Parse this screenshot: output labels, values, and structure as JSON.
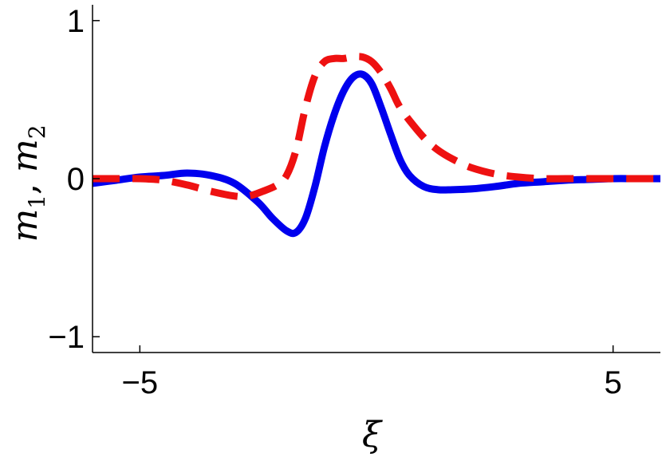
{
  "chart_data": {
    "type": "line",
    "xlabel": "ξ",
    "ylabel_parts": {
      "m": "m",
      "sub1": "1",
      "sep": ", ",
      "sub2": "2"
    },
    "xlim": [
      -6,
      6
    ],
    "ylim": [
      -1.1,
      1.1
    ],
    "x_ticks": [
      {
        "value": -5,
        "label": "−5"
      },
      {
        "value": 5,
        "label": "5"
      }
    ],
    "y_ticks": [
      {
        "value": 1,
        "label": "1"
      },
      {
        "value": 0,
        "label": "0"
      },
      {
        "value": -1,
        "label": "−1"
      }
    ],
    "grid": false,
    "series": [
      {
        "style": "solid",
        "color": "#0000ee",
        "x": [
          -6,
          -5.5,
          -5,
          -4.5,
          -4,
          -3.5,
          -3,
          -2.5,
          -2.2,
          -1.9,
          -1.7,
          -1.5,
          -1.3,
          -1.1,
          -0.9,
          -0.7,
          -0.5,
          -0.3,
          -0.1,
          0.1,
          0.3,
          0.5,
          0.7,
          1.0,
          1.3,
          1.6,
          2.0,
          2.5,
          3.0,
          3.5,
          4.0,
          4.5,
          5.0,
          5.5,
          6.0
        ],
        "y": [
          -0.03,
          -0.01,
          0.01,
          0.02,
          0.035,
          0.02,
          -0.03,
          -0.15,
          -0.25,
          -0.33,
          -0.34,
          -0.25,
          -0.05,
          0.2,
          0.4,
          0.55,
          0.64,
          0.66,
          0.6,
          0.45,
          0.28,
          0.12,
          0.02,
          -0.05,
          -0.07,
          -0.07,
          -0.065,
          -0.05,
          -0.03,
          -0.02,
          -0.01,
          -0.005,
          0.0,
          0.0,
          0.0
        ]
      },
      {
        "style": "dashed",
        "color": "#ee1111",
        "x": [
          -6,
          -5.5,
          -5,
          -4.5,
          -4,
          -3.5,
          -3,
          -2.7,
          -2.4,
          -2.1,
          -1.9,
          -1.7,
          -1.5,
          -1.3,
          -1.1,
          -0.9,
          -0.7,
          -0.5,
          -0.3,
          -0.1,
          0.1,
          0.3,
          0.5,
          0.8,
          1.1,
          1.4,
          1.7,
          2.0,
          2.5,
          3.0,
          3.5,
          4.0,
          4.5,
          5.0,
          5.5,
          6.0
        ],
        "y": [
          0.0,
          0.0,
          0.0,
          -0.01,
          -0.04,
          -0.08,
          -0.11,
          -0.11,
          -0.08,
          -0.04,
          0.02,
          0.18,
          0.45,
          0.65,
          0.74,
          0.76,
          0.76,
          0.77,
          0.77,
          0.74,
          0.67,
          0.57,
          0.45,
          0.33,
          0.23,
          0.16,
          0.11,
          0.07,
          0.03,
          0.01,
          0.0,
          0.0,
          0.0,
          0.0,
          0.0,
          0.0
        ]
      }
    ]
  }
}
